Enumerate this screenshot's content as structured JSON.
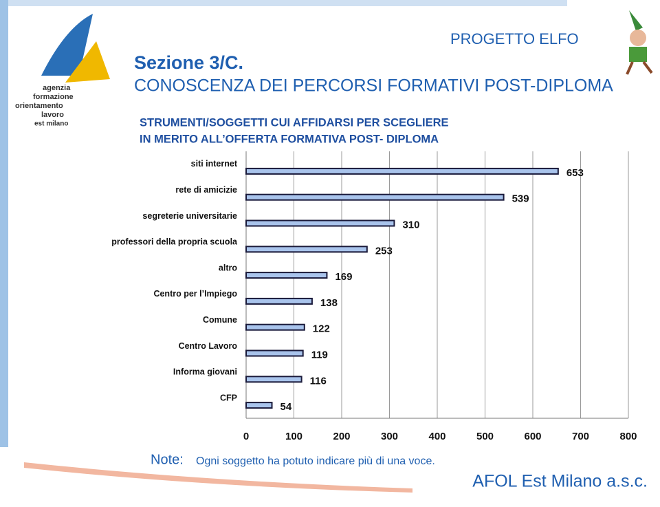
{
  "header": {
    "project": "PROGETTO ELFO",
    "section": "Sezione 3/C.",
    "subtitle": "CONOSCENZA DEI PERCORSI FORMATIVI POST-DIPLOMA",
    "logo_lines": [
      "agenzia",
      "formazione",
      "orientamento",
      "lavoro",
      "est milano"
    ]
  },
  "chart_data": {
    "type": "hbar",
    "title": [
      "STRUMENTI/SOGGETTI CUI AFFIDARSI PER SCEGLIERE",
      "IN MERITO ALL’OFFERTA FORMATIVA POST- DIPLOMA"
    ],
    "categories": [
      "siti internet",
      "rete di amicizie",
      "segreterie universitarie",
      "professori della propria scuola",
      "altro",
      "Centro per l’Impiego",
      "Comune",
      "Centro Lavoro",
      "Informa giovani",
      "CFP"
    ],
    "values": [
      653,
      539,
      310,
      253,
      169,
      138,
      122,
      119,
      116,
      54
    ],
    "color": "#a9c4ec",
    "edge": "#1a1a3a",
    "xlim": [
      0,
      800
    ],
    "xticks": [
      0,
      100,
      200,
      300,
      400,
      500,
      600,
      700,
      800
    ],
    "grid": true
  },
  "note": {
    "label": "Note:",
    "text": "Ogni soggetto ha potuto indicare più di una voce."
  },
  "footer": "AFOL Est Milano a.s.c."
}
